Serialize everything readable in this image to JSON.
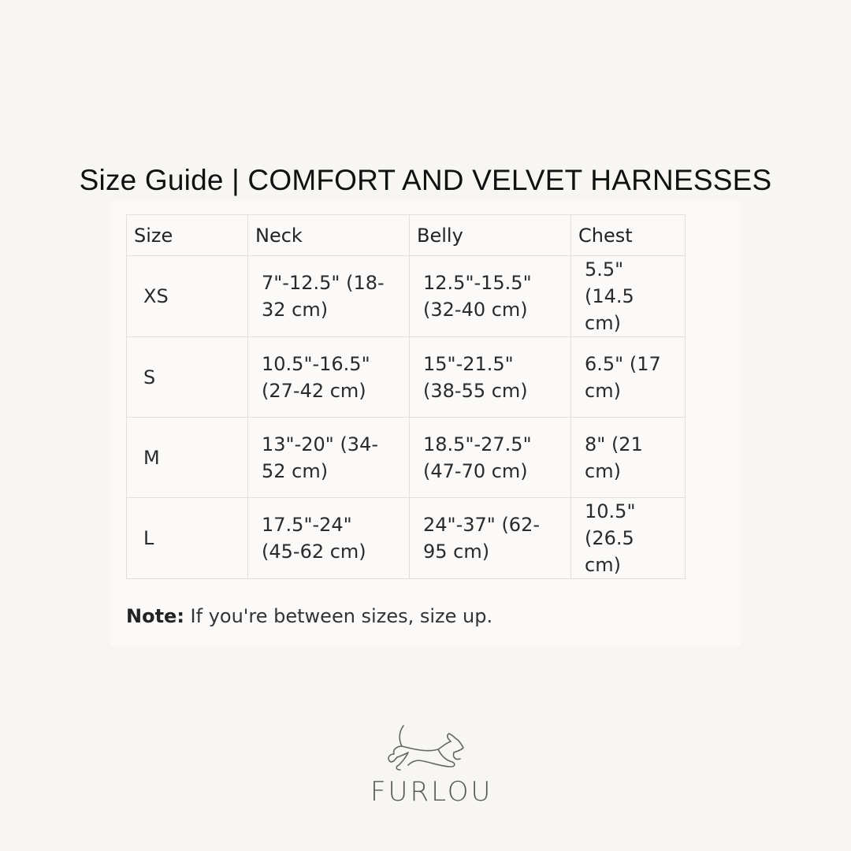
{
  "title": "Size Guide | COMFORT AND VELVET HARNESSES",
  "table": {
    "headers": [
      "Size",
      "Neck",
      "Belly",
      "Chest"
    ],
    "rows": [
      [
        "XS",
        "7\"-12.5\" (18-32 cm)",
        "12.5\"-15.5\" (32-40 cm)",
        "5.5\" (14.5 cm)"
      ],
      [
        "S",
        "10.5\"-16.5\" (27-42 cm)",
        "15\"-21.5\" (38-55 cm)",
        "6.5\" (17 cm)"
      ],
      [
        "M",
        "13\"-20\" (34-52 cm)",
        "18.5\"-27.5\" (47-70 cm)",
        "8\" (21 cm)"
      ],
      [
        "L",
        "17.5\"-24\" (45-62 cm)",
        "24\"-37\" (62-95 cm)",
        "10.5\" (26.5 cm)"
      ]
    ]
  },
  "note": {
    "label": "Note:",
    "text": " If you're between sizes, size up."
  },
  "logo": {
    "brand": "FURLOU",
    "icon": "running-dog-icon"
  },
  "colors": {
    "background": "#f7f6f3",
    "border": "#e2e0db",
    "logo": "#555555"
  }
}
